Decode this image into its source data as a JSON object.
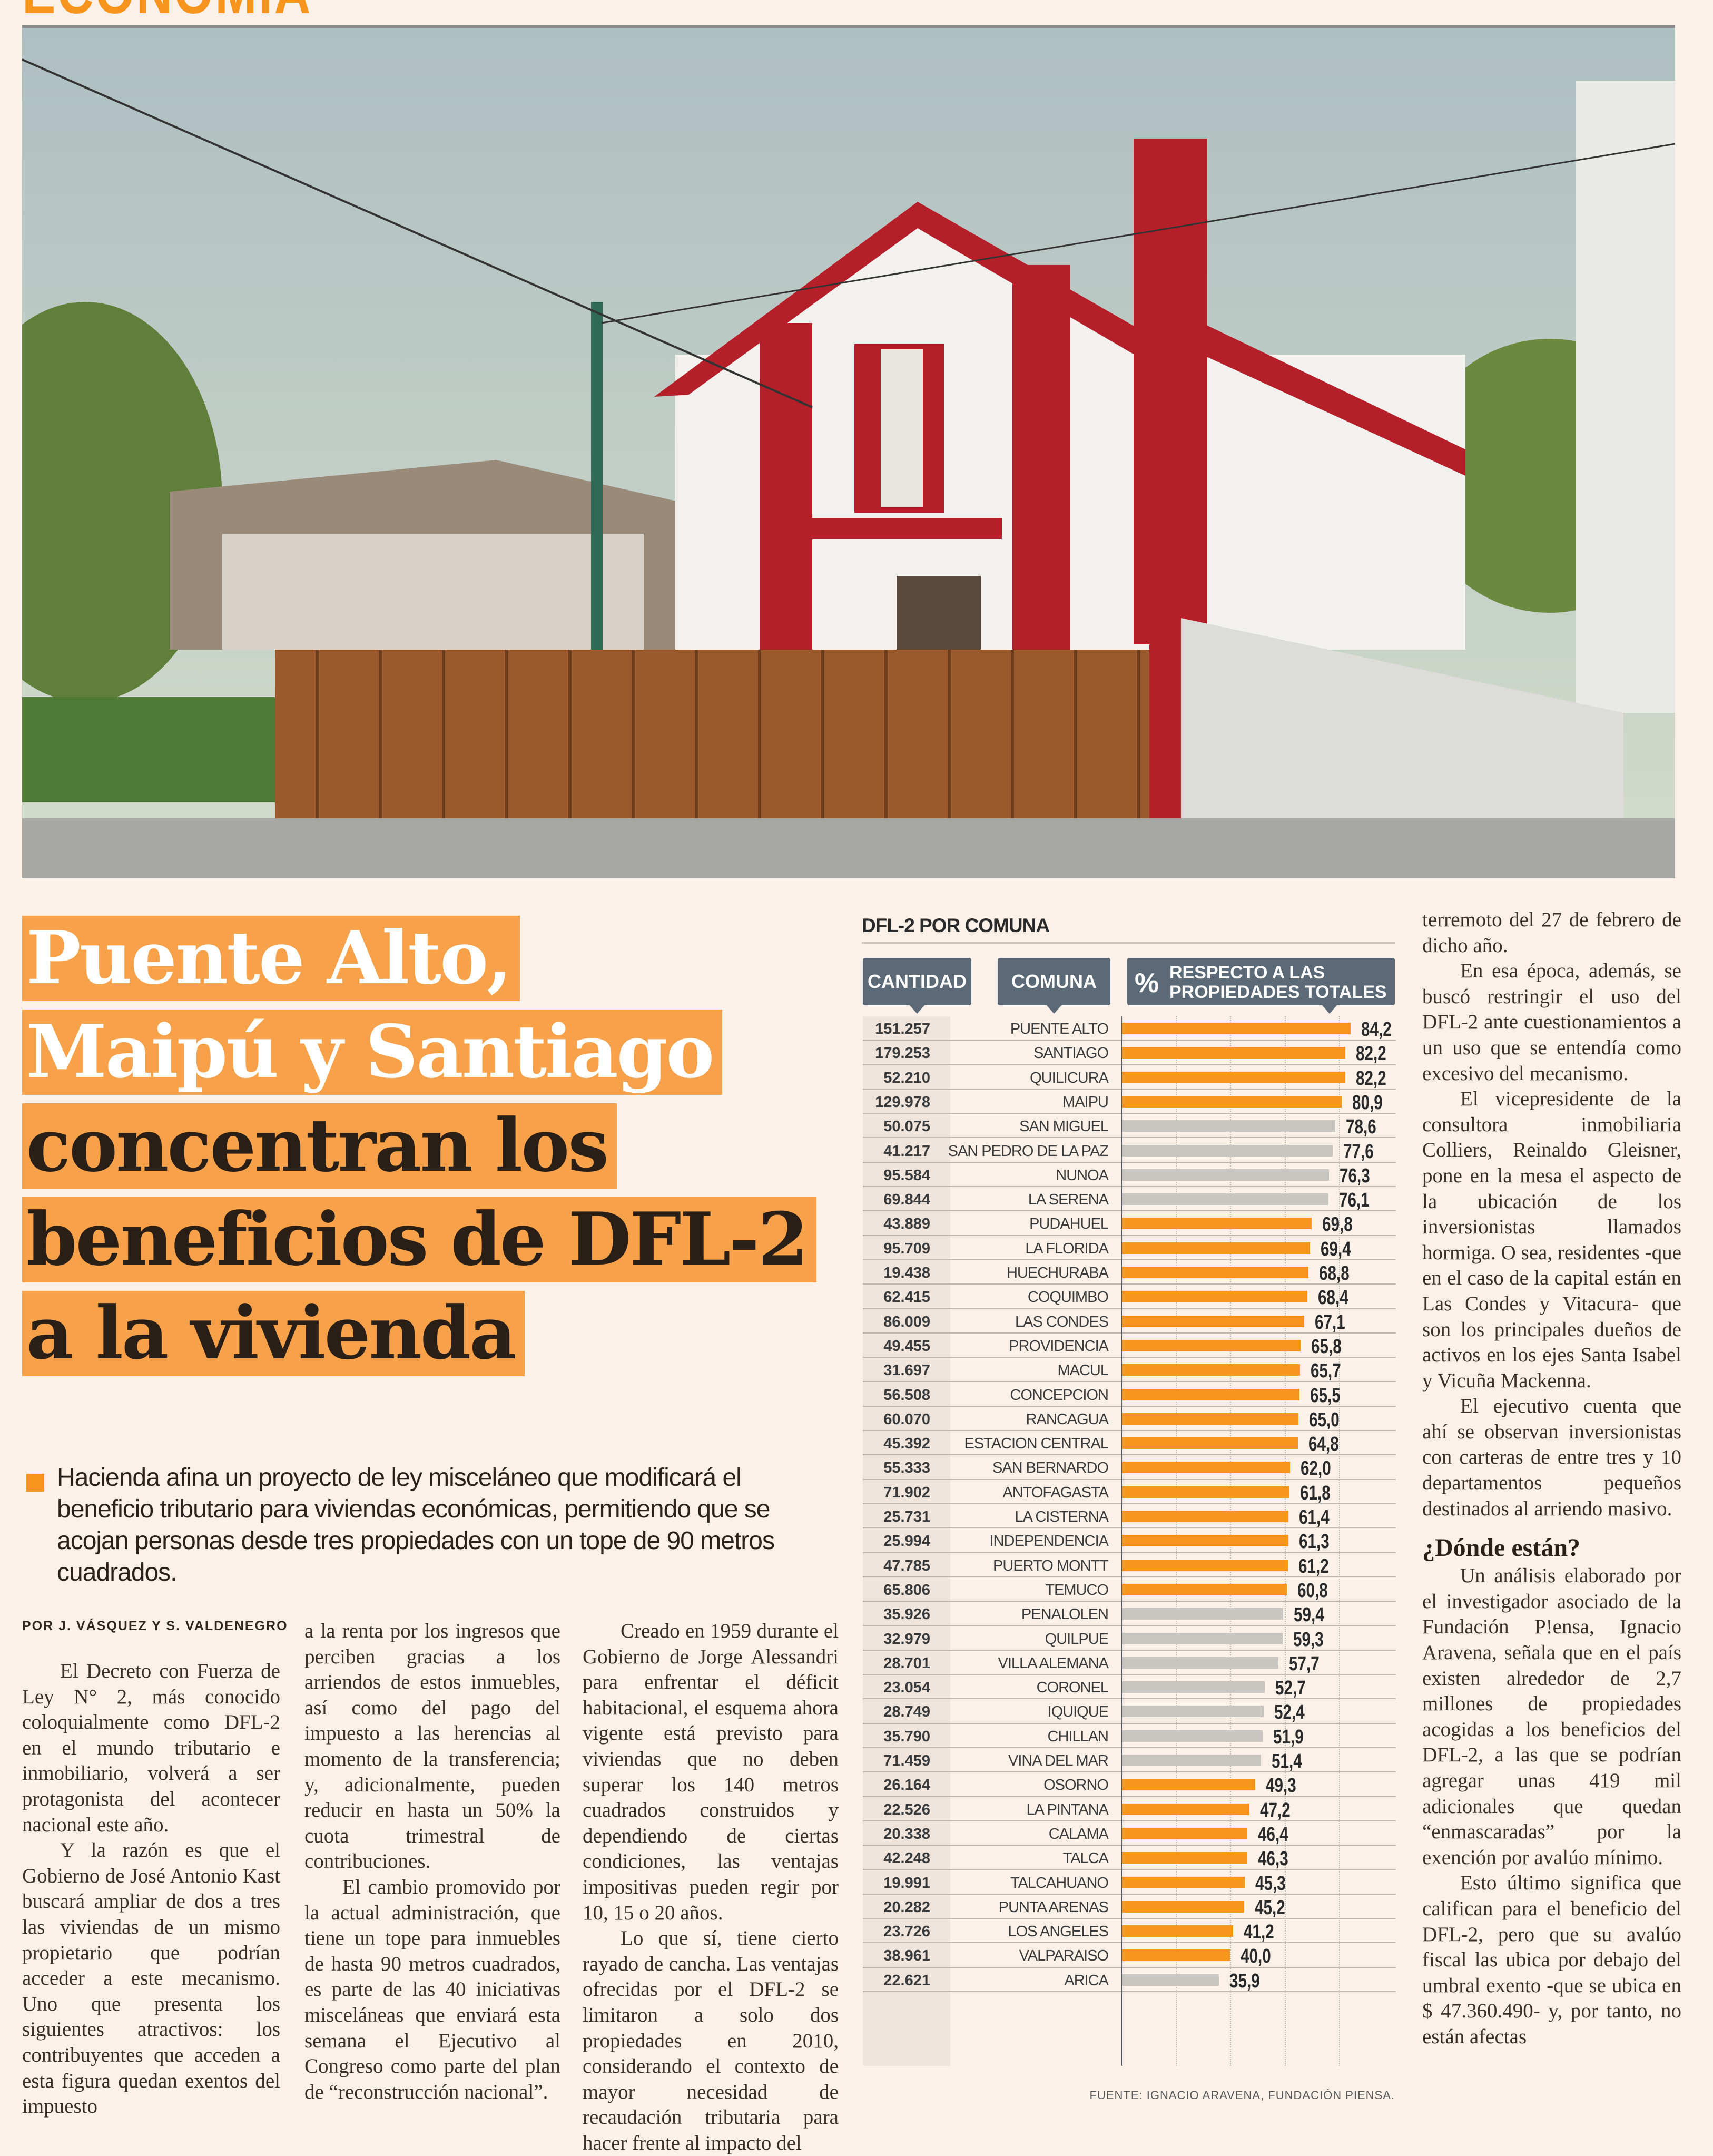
{
  "section": "ECONOMÍA",
  "headline": {
    "lines_highlight": [
      "Puente Alto,",
      "Maipú y Santiago"
    ],
    "lines_dark": [
      "concentran los",
      "beneficios de DFL-2",
      "a la vivienda"
    ]
  },
  "dek": "Hacienda afina un proyecto de ley misceláneo que modificará el beneficio tributario para viviendas económicas, permitiendo que se acojan personas desde tres propiedades con un tope de 90 metros cuadrados.",
  "byline": "POR J. VÁSQUEZ Y S. VALDENEGRO",
  "body": {
    "col1": [
      "El Decreto con Fuerza de Ley N° 2, más conocido coloquialmente como DFL-2 en el mundo tributario e inmobiliario, volverá a ser protagonista del acontecer nacional este año.",
      "Y la razón es que el Gobierno de José Antonio Kast buscará ampliar de dos a tres las viviendas de un mismo propietario que podrían acceder a este mecanismo. Uno que presenta los siguientes atractivos: los contribuyentes que acceden a esta figura quedan exentos del impuesto"
    ],
    "col2": [
      "a la renta por los ingresos que perciben gracias a los arriendos de estos inmuebles, así como del pago del impuesto a las herencias al momento de la transferencia; y, adicionalmente, pueden reducir en hasta un 50% la cuota trimestral de contribuciones.",
      "El cambio promovido por la actual administración, que tiene un tope para inmuebles de hasta 90 metros cuadrados, es parte de las 40 iniciativas misceláneas que enviará esta semana el Ejecutivo al Congreso como parte del plan de “reconstrucción nacional”."
    ],
    "col3": [
      "Creado en 1959 durante el Gobierno de Jorge Alessandri para enfrentar el déficit habitacional, el esquema ahora vigente está previsto para viviendas que no deben superar los 140 metros cuadrados construidos y dependiendo de ciertas condiciones, las ventajas impositivas pueden regir por 10, 15 o 20 años.",
      "Lo que sí, tiene cierto rayado de cancha. Las ventajas ofrecidas por el DFL-2 se limitaron a solo dos propiedades en 2010, considerando el contexto de mayor necesidad de recaudación tributaria para hacer frente al impacto del"
    ],
    "col4a": [
      "terremoto del 27 de febrero de dicho año.",
      "En esa época, además, se buscó restringir el uso del DFL-2 ante cuestionamientos a un uso que se entendía como excesivo del mecanismo.",
      "El vicepresidente de la consultora inmobiliaria Colliers, Reinaldo Gleisner, pone en la mesa el aspecto de la ubicación de los inversionistas llamados hormiga. O sea, residentes -que en el caso de la capital están en Las Condes y Vitacura- que son los principales dueños de activos en los ejes Santa Isabel y Vicuña Mackenna.",
      "El ejecutivo cuenta que ahí se observan inversionistas con carteras de entre tres y 10 departamentos pequeños destinados al arriendo masivo."
    ],
    "subhead": "¿Dónde están?",
    "col4b": [
      "Un análisis elaborado por el investigador asociado de la Fundación P!ensa, Ignacio Aravena, señala que en el país existen alrededor de 2,7 millones de propiedades acogidas a los beneficios del DFL-2, a las que se podrían agregar unas 419 mil adicionales que quedan “enmascaradas” por la exención por avalúo mínimo.",
      "Esto último significa que califican para el beneficio del DFL-2, pero que su avalúo fiscal las ubica por debajo del umbral exento -que se ubica en $ 47.360.490- y, por tanto, no están afectas"
    ]
  },
  "colors": {
    "accent": "#f7941d",
    "bar_highlight": "#f7941d",
    "bar_other": "#c9c6c1",
    "header_box": "#5c6a77",
    "background": "#fcf1e8"
  },
  "chart_data": {
    "type": "table",
    "title": "DFL-2 POR COMUNA",
    "headers": {
      "cantidad": "CANTIDAD",
      "comuna": "COMUNA",
      "pct_symbol": "%",
      "pct_label_1": "RESPECTO A LAS",
      "pct_label_2": "PROPIEDADES TOTALES"
    },
    "xlim": [
      0,
      100
    ],
    "grid": true,
    "source": "FUENTE:  IGNACIO ARAVENA, FUNDACIÓN PIENSA.",
    "rows": [
      {
        "cantidad": "151.257",
        "comuna": "PUENTE ALTO",
        "pct": 84.2,
        "label": "84,2",
        "color": "#f7941d"
      },
      {
        "cantidad": "179.253",
        "comuna": "SANTIAGO",
        "pct": 82.2,
        "label": "82,2",
        "color": "#f7941d"
      },
      {
        "cantidad": "52.210",
        "comuna": "QUILICURA",
        "pct": 82.2,
        "label": "82,2",
        "color": "#f7941d"
      },
      {
        "cantidad": "129.978",
        "comuna": "MAIPU",
        "pct": 80.9,
        "label": "80,9",
        "color": "#f7941d"
      },
      {
        "cantidad": "50.075",
        "comuna": "SAN MIGUEL",
        "pct": 78.6,
        "label": "78,6",
        "color": "#c9c6c1"
      },
      {
        "cantidad": "41.217",
        "comuna": "SAN PEDRO DE LA PAZ",
        "pct": 77.6,
        "label": "77,6",
        "color": "#c9c6c1"
      },
      {
        "cantidad": "95.584",
        "comuna": "NUNOA",
        "pct": 76.3,
        "label": "76,3",
        "color": "#c9c6c1"
      },
      {
        "cantidad": "69.844",
        "comuna": "LA SERENA",
        "pct": 76.1,
        "label": "76,1",
        "color": "#c9c6c1"
      },
      {
        "cantidad": "43.889",
        "comuna": "PUDAHUEL",
        "pct": 69.8,
        "label": "69,8",
        "color": "#f7941d"
      },
      {
        "cantidad": "95.709",
        "comuna": "LA FLORIDA",
        "pct": 69.4,
        "label": "69,4",
        "color": "#f7941d"
      },
      {
        "cantidad": "19.438",
        "comuna": "HUECHURABA",
        "pct": 68.8,
        "label": "68,8",
        "color": "#f7941d"
      },
      {
        "cantidad": "62.415",
        "comuna": "COQUIMBO",
        "pct": 68.4,
        "label": "68,4",
        "color": "#f7941d"
      },
      {
        "cantidad": "86.009",
        "comuna": "LAS CONDES",
        "pct": 67.1,
        "label": "67,1",
        "color": "#f7941d"
      },
      {
        "cantidad": "49.455",
        "comuna": "PROVIDENCIA",
        "pct": 65.8,
        "label": "65,8",
        "color": "#f7941d"
      },
      {
        "cantidad": "31.697",
        "comuna": "MACUL",
        "pct": 65.7,
        "label": "65,7",
        "color": "#f7941d"
      },
      {
        "cantidad": "56.508",
        "comuna": "CONCEPCION",
        "pct": 65.5,
        "label": "65,5",
        "color": "#f7941d"
      },
      {
        "cantidad": "60.070",
        "comuna": "RANCAGUA",
        "pct": 65.0,
        "label": "65,0",
        "color": "#f7941d"
      },
      {
        "cantidad": "45.392",
        "comuna": "ESTACION CENTRAL",
        "pct": 64.8,
        "label": "64,8",
        "color": "#f7941d"
      },
      {
        "cantidad": "55.333",
        "comuna": "SAN BERNARDO",
        "pct": 62.0,
        "label": "62,0",
        "color": "#f7941d"
      },
      {
        "cantidad": "71.902",
        "comuna": "ANTOFAGASTA",
        "pct": 61.8,
        "label": "61,8",
        "color": "#f7941d"
      },
      {
        "cantidad": "25.731",
        "comuna": "LA CISTERNA",
        "pct": 61.4,
        "label": "61,4",
        "color": "#f7941d"
      },
      {
        "cantidad": "25.994",
        "comuna": "INDEPENDENCIA",
        "pct": 61.3,
        "label": "61,3",
        "color": "#f7941d"
      },
      {
        "cantidad": "47.785",
        "comuna": "PUERTO MONTT",
        "pct": 61.2,
        "label": "61,2",
        "color": "#f7941d"
      },
      {
        "cantidad": "65.806",
        "comuna": "TEMUCO",
        "pct": 60.8,
        "label": "60,8",
        "color": "#f7941d"
      },
      {
        "cantidad": "35.926",
        "comuna": "PENALOLEN",
        "pct": 59.4,
        "label": "59,4",
        "color": "#c9c6c1"
      },
      {
        "cantidad": "32.979",
        "comuna": "QUILPUE",
        "pct": 59.3,
        "label": "59,3",
        "color": "#c9c6c1"
      },
      {
        "cantidad": "28.701",
        "comuna": "VILLA ALEMANA",
        "pct": 57.7,
        "label": "57,7",
        "color": "#c9c6c1"
      },
      {
        "cantidad": "23.054",
        "comuna": "CORONEL",
        "pct": 52.7,
        "label": "52,7",
        "color": "#c9c6c1"
      },
      {
        "cantidad": "28.749",
        "comuna": "IQUIQUE",
        "pct": 52.4,
        "label": "52,4",
        "color": "#c9c6c1"
      },
      {
        "cantidad": "35.790",
        "comuna": "CHILLAN",
        "pct": 51.9,
        "label": "51,9",
        "color": "#c9c6c1"
      },
      {
        "cantidad": "71.459",
        "comuna": "VINA DEL MAR",
        "pct": 51.4,
        "label": "51,4",
        "color": "#c9c6c1"
      },
      {
        "cantidad": "26.164",
        "comuna": "OSORNO",
        "pct": 49.3,
        "label": "49,3",
        "color": "#f7941d"
      },
      {
        "cantidad": "22.526",
        "comuna": "LA PINTANA",
        "pct": 47.2,
        "label": "47,2",
        "color": "#f7941d"
      },
      {
        "cantidad": "20.338",
        "comuna": "CALAMA",
        "pct": 46.4,
        "label": "46,4",
        "color": "#f7941d"
      },
      {
        "cantidad": "42.248",
        "comuna": "TALCA",
        "pct": 46.3,
        "label": "46,3",
        "color": "#f7941d"
      },
      {
        "cantidad": "19.991",
        "comuna": "TALCAHUANO",
        "pct": 45.3,
        "label": "45,3",
        "color": "#f7941d"
      },
      {
        "cantidad": "20.282",
        "comuna": "PUNTA ARENAS",
        "pct": 45.2,
        "label": "45,2",
        "color": "#f7941d"
      },
      {
        "cantidad": "23.726",
        "comuna": "LOS ANGELES",
        "pct": 41.2,
        "label": "41,2",
        "color": "#f7941d"
      },
      {
        "cantidad": "38.961",
        "comuna": "VALPARAISO",
        "pct": 40.0,
        "label": "40,0",
        "color": "#f7941d"
      },
      {
        "cantidad": "22.621",
        "comuna": "ARICA",
        "pct": 35.9,
        "label": "35,9",
        "color": "#c9c6c1"
      }
    ]
  }
}
